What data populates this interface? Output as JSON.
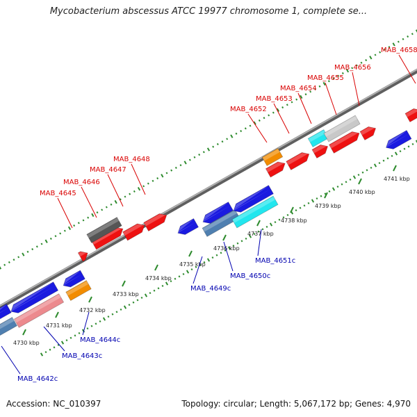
{
  "title": "Mycobacterium abscessus ATCC 19977 chromosome 1, complete se...",
  "footer": {
    "accession": "Accession: NC_010397",
    "summary": "Topology: circular; Length: 5,067,172 bp; Genes: 4,970"
  },
  "colors": {
    "plus_label": "#d90000",
    "minus_label": "#0000b0",
    "backbone": "#8a8a8a",
    "scale_dots": "#2e8b2e",
    "red": "#ee1111",
    "blue": "#1a1ae0",
    "gray": "#555555",
    "lightgray": "#c8c8c8",
    "cyan": "#22e6ee",
    "orange": "#f28c00",
    "steelblue": "#4f7fb0",
    "pink": "#ec8a8e"
  },
  "ticks": [
    "4730 kbp",
    "4731 kbp",
    "4732 kbp",
    "4733 kbp",
    "4734 kbp",
    "4735 kbp",
    "4736 kbp",
    "4737 kbp",
    "4738 kbp",
    "4739 kbp",
    "4740 kbp",
    "4741 kbp"
  ],
  "plus_labels": [
    "MAB_4645",
    "MAB_4646",
    "MAB_4647",
    "MAB_4648",
    "MAB_4652",
    "MAB_4653",
    "MAB_4654",
    "MAB_4655",
    "MAB_4656",
    "MAB_4658"
  ],
  "minus_labels": [
    "MAB_4642c",
    "MAB_4643c",
    "MAB_4644c",
    "MAB_4649c",
    "MAB_4650c",
    "MAB_4651c"
  ]
}
